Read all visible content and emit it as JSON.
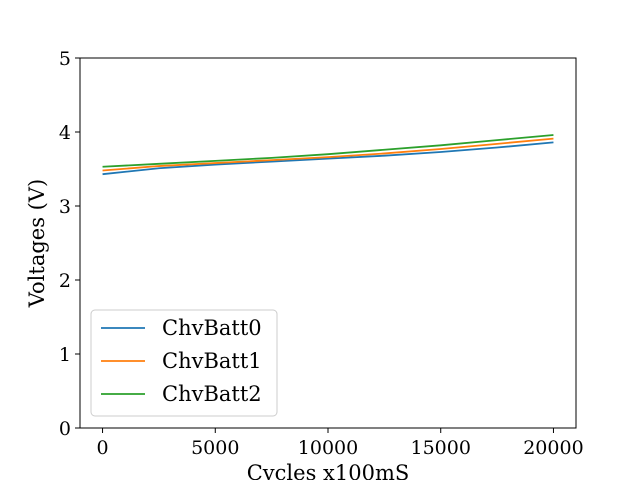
{
  "chart_data": {
    "type": "line",
    "title": "",
    "xlabel": "Cycles x100mS",
    "ylabel": "Voltages (V)",
    "xlim": [
      -1000,
      21000
    ],
    "ylim": [
      0,
      5
    ],
    "xticks": [
      0,
      5000,
      10000,
      15000,
      20000
    ],
    "yticks": [
      0,
      1,
      2,
      3,
      4,
      5
    ],
    "grid": false,
    "legend_position": "lower-left",
    "series": [
      {
        "name": "ChvBatt0",
        "color": "#1f77b4",
        "x": [
          0,
          2500,
          5000,
          7500,
          10000,
          12500,
          15000,
          17500,
          20000
        ],
        "y": [
          3.43,
          3.51,
          3.56,
          3.6,
          3.64,
          3.68,
          3.73,
          3.79,
          3.86
        ]
      },
      {
        "name": "ChvBatt1",
        "color": "#ff7f0e",
        "x": [
          0,
          2500,
          5000,
          7500,
          10000,
          12500,
          15000,
          17500,
          20000
        ],
        "y": [
          3.48,
          3.54,
          3.58,
          3.62,
          3.66,
          3.71,
          3.77,
          3.84,
          3.91
        ]
      },
      {
        "name": "ChvBatt2",
        "color": "#2ca02c",
        "x": [
          0,
          2500,
          5000,
          7500,
          10000,
          12500,
          15000,
          17500,
          20000
        ],
        "y": [
          3.53,
          3.57,
          3.61,
          3.65,
          3.7,
          3.76,
          3.82,
          3.89,
          3.96
        ]
      }
    ]
  }
}
